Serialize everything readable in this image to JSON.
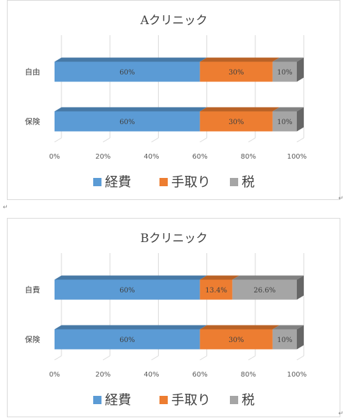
{
  "chart_data": [
    {
      "type": "bar",
      "orientation": "horizontal",
      "stacked": "percent",
      "title": "Aクリニック",
      "categories": [
        "自由",
        "保険"
      ],
      "series": [
        {
          "name": "経費",
          "color": "#5B9BD5",
          "values": [
            60,
            60
          ],
          "labels": [
            "60%",
            "60%"
          ]
        },
        {
          "name": "手取り",
          "color": "#ED7D31",
          "values": [
            30,
            30
          ],
          "labels": [
            "30%",
            "30%"
          ]
        },
        {
          "name": "税",
          "color": "#A5A5A5",
          "values": [
            10,
            10
          ],
          "labels": [
            "10%",
            "10%"
          ]
        }
      ],
      "xticks": [
        "0%",
        "20%",
        "40%",
        "60%",
        "80%",
        "100%"
      ],
      "xlim": [
        0,
        100
      ],
      "legend": "bottom",
      "grid": true
    },
    {
      "type": "bar",
      "orientation": "horizontal",
      "stacked": "percent",
      "title": "Bクリニック",
      "categories": [
        "自費",
        "保険"
      ],
      "series": [
        {
          "name": "経費",
          "color": "#5B9BD5",
          "values": [
            60,
            60
          ],
          "labels": [
            "60%",
            "60%"
          ]
        },
        {
          "name": "手取り",
          "color": "#ED7D31",
          "values": [
            13.4,
            30
          ],
          "labels": [
            "13.4%",
            "30%"
          ]
        },
        {
          "name": "税",
          "color": "#A5A5A5",
          "values": [
            26.6,
            10
          ],
          "labels": [
            "26.6%",
            "10%"
          ]
        }
      ],
      "xticks": [
        "0%",
        "20%",
        "40%",
        "60%",
        "80%",
        "100%"
      ],
      "xlim": [
        0,
        100
      ],
      "legend": "bottom",
      "grid": true
    }
  ]
}
